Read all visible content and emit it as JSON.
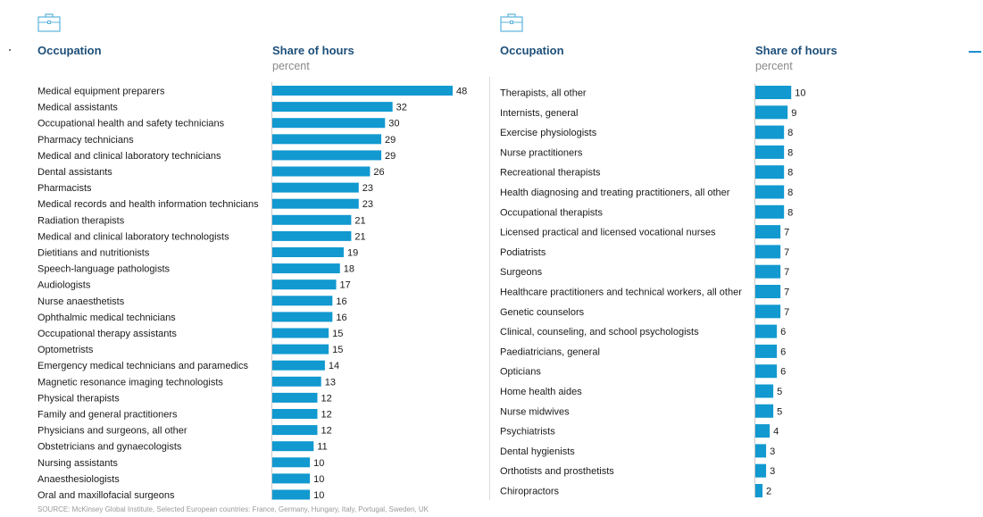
{
  "source": "SOURCE: McKinsey Global Institute, Selected European countries: France, Germany, Hungary, Italy, Portugal, Sweden, UK",
  "colors": {
    "bar": "#1199d0",
    "heading": "#1d4f79",
    "subheading": "#8a8a8a",
    "divider": "#d9d9d9"
  },
  "icons": {
    "panel_icon": "briefcase-icon"
  },
  "chart_data": [
    {
      "type": "bar",
      "orientation": "horizontal",
      "category_header": "Occupation",
      "value_header": "Share of hours",
      "value_unit": "percent",
      "xlim": [
        0,
        48
      ],
      "categories": [
        "Medical equipment preparers",
        "Medical assistants",
        "Occupational health and safety technicians",
        "Pharmacy technicians",
        "Medical and clinical laboratory technicians",
        "Dental assistants",
        "Pharmacists",
        "Medical records and health information technicians",
        "Radiation therapists",
        "Medical and clinical laboratory technologists",
        "Dietitians and nutritionists",
        "Speech-language pathologists",
        "Audiologists",
        "Nurse anaesthetists",
        "Ophthalmic medical technicians",
        "Occupational therapy assistants",
        "Optometrists",
        "Emergency medical technicians and paramedics",
        "Magnetic resonance imaging technologists",
        "Physical therapists",
        "Family and general practitioners",
        "Physicians and surgeons, all other",
        "Obstetricians and gynaecologists",
        "Nursing assistants",
        "Anaesthesiologists",
        "Oral and maxillofacial surgeons"
      ],
      "values": [
        48,
        32,
        30,
        29,
        29,
        26,
        23,
        23,
        21,
        21,
        19,
        18,
        17,
        16,
        16,
        15,
        15,
        14,
        13,
        12,
        12,
        12,
        11,
        10,
        10,
        10
      ]
    },
    {
      "type": "bar",
      "orientation": "horizontal",
      "category_header": "Occupation",
      "value_header": "Share of hours",
      "value_unit": "percent",
      "xlim": [
        0,
        48
      ],
      "categories": [
        "Therapists, all other",
        "Internists, general",
        "Exercise physiologists",
        "Nurse practitioners",
        "Recreational therapists",
        "Health diagnosing and treating practitioners, all other",
        "Occupational therapists",
        "Licensed practical and licensed vocational nurses",
        "Podiatrists",
        "Surgeons",
        "Healthcare practitioners and technical workers, all other",
        "Genetic counselors",
        "Clinical, counseling, and school psychologists",
        "Paediatricians, general",
        "Opticians",
        "Home health aides",
        "Nurse midwives",
        "Psychiatrists",
        "Dental hygienists",
        "Orthotists and prosthetists",
        "Chiropractors"
      ],
      "values": [
        10,
        9,
        8,
        8,
        8,
        8,
        8,
        7,
        7,
        7,
        7,
        7,
        6,
        6,
        6,
        5,
        5,
        4,
        3,
        3,
        2
      ]
    }
  ]
}
